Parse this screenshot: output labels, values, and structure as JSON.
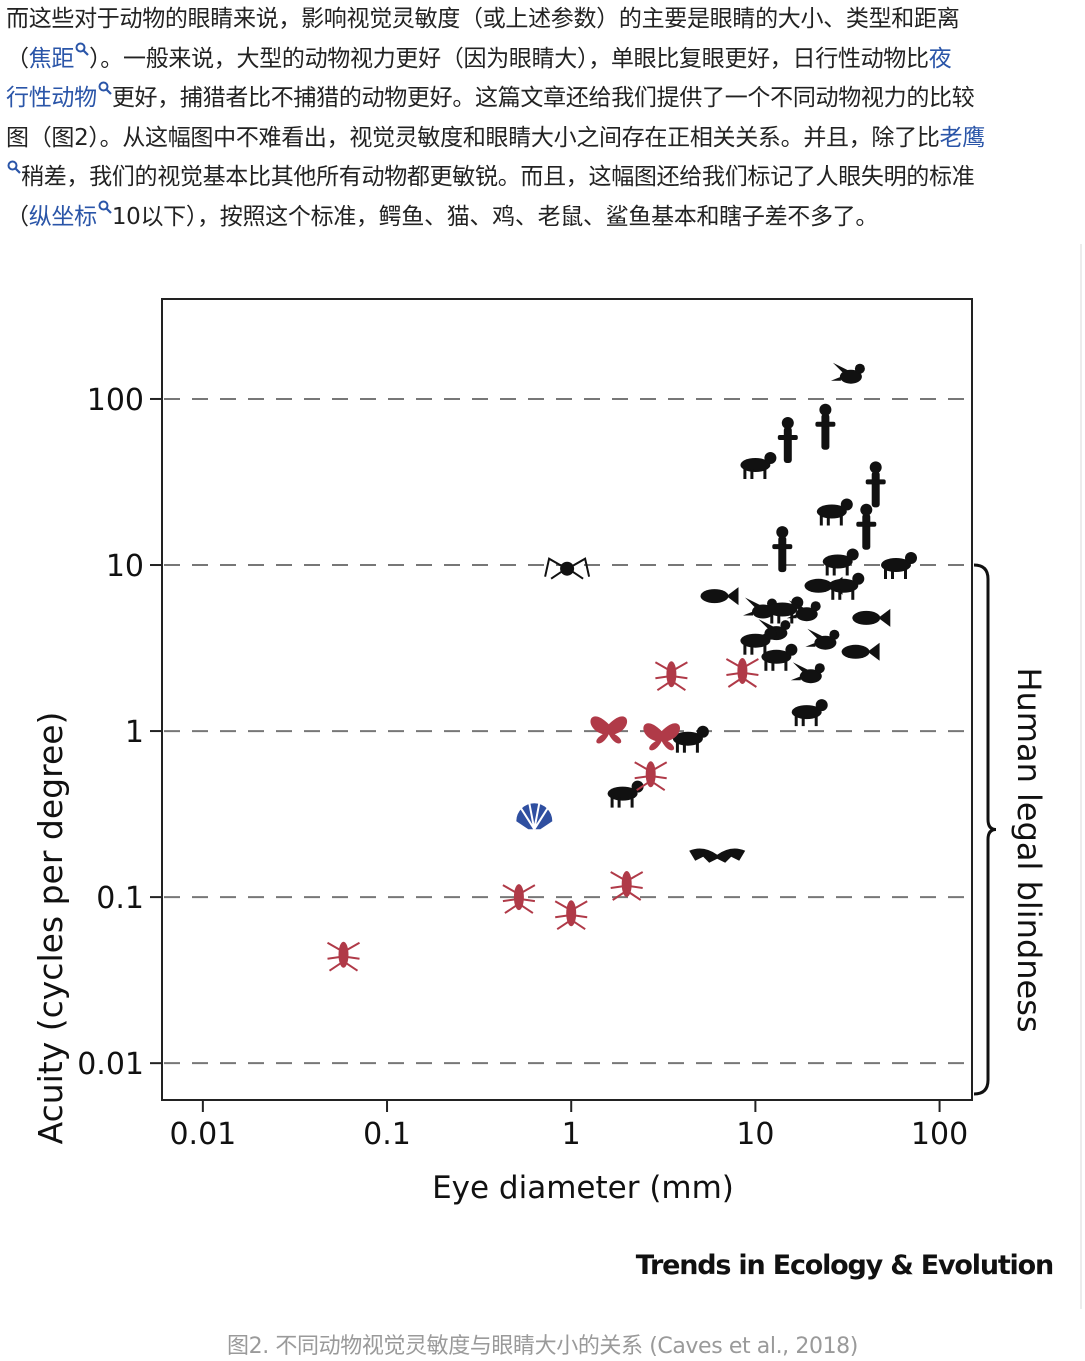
{
  "article": {
    "lines": [
      [
        {
          "t": "而这些对于动物的眼睛来说，影响视觉灵敏度（或上述参数）的主要是眼睛的大小、类型和距离"
        }
      ],
      [
        {
          "t": "（"
        },
        {
          "t": "焦距",
          "link": true
        },
        {
          "t": "）。一般来说，大型的动物视力更好（因为眼睛大），单眼比复眼更好，日行性动物比"
        },
        {
          "t": "夜",
          "link": true,
          "nomag": true
        }
      ],
      [
        {
          "t": "行性动物",
          "link": true
        },
        {
          "t": "更好，捕猎者比不捕猎的动物更好。这篇文章还给我们提供了一个不同动物视力的比较"
        }
      ],
      [
        {
          "t": "图（图2）。从这幅图中不难看出，视觉灵敏度和眼睛大小之间存在正相关关系。并且，除了比"
        },
        {
          "t": "老鹰",
          "link": true,
          "nomag": true
        }
      ],
      [
        {
          "t": "稍差，我们的视觉基本比其他所有动物都更敏锐。而且，这幅图还给我们标记了人眼失明的标准",
          "leadmag": true
        }
      ],
      [
        {
          "t": "（"
        },
        {
          "t": "纵坐标",
          "link": true
        },
        {
          "t": "10以下），按照这个标准，鳄鱼、猫、鸡、老鼠、鲨鱼基本和瞎子差不多了。"
        }
      ]
    ]
  },
  "chart_data": {
    "type": "scatter",
    "xlabel": "Eye diameter (mm)",
    "ylabel": "Acuity (cycles per degree)",
    "x_scale": "log",
    "y_scale": "log",
    "xlim": [
      0.006,
      150
    ],
    "ylim": [
      0.006,
      400
    ],
    "x_ticks": [
      "0.01",
      "0.1",
      "1",
      "10",
      "100"
    ],
    "y_ticks": [
      "0.01",
      "0.1",
      "1",
      "10",
      "100"
    ],
    "gridlines": "horizontal dashed at y ticks",
    "bracket_label": "Human legal blindness",
    "bracket_range": [
      0.006,
      10
    ],
    "colors": {
      "vertebrates": "#111111",
      "invertebrates": "#b03a48",
      "mollusc": "#2f4fa0"
    },
    "series": [
      {
        "group": "vertebrates",
        "points": [
          {
            "animal": "eagle",
            "x": 33,
            "y": 140
          },
          {
            "animal": "human",
            "x": 24,
            "y": 60
          },
          {
            "animal": "primate",
            "x": 15,
            "y": 50
          },
          {
            "animal": "monkey",
            "x": 10,
            "y": 40
          },
          {
            "animal": "giraffe",
            "x": 45,
            "y": 27
          },
          {
            "animal": "cheetah",
            "x": 26,
            "y": 21
          },
          {
            "animal": "ostrich",
            "x": 40,
            "y": 15
          },
          {
            "animal": "penguin",
            "x": 14,
            "y": 11
          },
          {
            "animal": "camel",
            "x": 28,
            "y": 10.5
          },
          {
            "animal": "elephant",
            "x": 58,
            "y": 10
          },
          {
            "animal": "crocodile",
            "x": 22,
            "y": 7.5
          },
          {
            "animal": "cat",
            "x": 30,
            "y": 7.5
          },
          {
            "animal": "goldfish",
            "x": 6,
            "y": 6.5
          },
          {
            "animal": "hummingbird",
            "x": 11,
            "y": 5.4
          },
          {
            "animal": "turtle",
            "x": 14,
            "y": 5.4
          },
          {
            "animal": "chicken",
            "x": 19,
            "y": 5.2
          },
          {
            "animal": "shark",
            "x": 40,
            "y": 4.8
          },
          {
            "animal": "bird",
            "x": 13,
            "y": 4
          },
          {
            "animal": "squirrel",
            "x": 10,
            "y": 3.5
          },
          {
            "animal": "parrot",
            "x": 24,
            "y": 3.5
          },
          {
            "animal": "seal",
            "x": 35,
            "y": 3
          },
          {
            "animal": "reptile",
            "x": 13,
            "y": 2.8
          },
          {
            "animal": "owl",
            "x": 20,
            "y": 2.2
          },
          {
            "animal": "sloth",
            "x": 19,
            "y": 1.3
          },
          {
            "animal": "rat",
            "x": 4.3,
            "y": 0.9
          },
          {
            "animal": "frog",
            "x": 1.9,
            "y": 0.42
          },
          {
            "animal": "bat",
            "x": 6.2,
            "y": 0.18
          },
          {
            "animal": "spider",
            "x": 0.95,
            "y": 9.5
          }
        ]
      },
      {
        "group": "invertebrates",
        "points": [
          {
            "animal": "mantis shrimp",
            "x": 3.5,
            "y": 2.2
          },
          {
            "animal": "dragonfly",
            "x": 8.5,
            "y": 2.3
          },
          {
            "animal": "butterfly",
            "x": 1.6,
            "y": 1.1
          },
          {
            "animal": "moth",
            "x": 3.1,
            "y": 1
          },
          {
            "animal": "bee",
            "x": 2.7,
            "y": 0.55
          },
          {
            "animal": "fly",
            "x": 0.52,
            "y": 0.1
          },
          {
            "animal": "ant",
            "x": 1.0,
            "y": 0.08
          },
          {
            "animal": "crayfish",
            "x": 2.0,
            "y": 0.12
          },
          {
            "animal": "small insect",
            "x": 0.058,
            "y": 0.045
          }
        ]
      },
      {
        "group": "mollusc",
        "points": [
          {
            "animal": "scallop",
            "x": 0.63,
            "y": 0.32
          }
        ]
      }
    ]
  },
  "figure": {
    "credit": "Trends in Ecology & Evolution",
    "caption": "图2. 不同动物视觉灵敏度与眼睛大小的关系 (Caves et al., 2018)"
  }
}
